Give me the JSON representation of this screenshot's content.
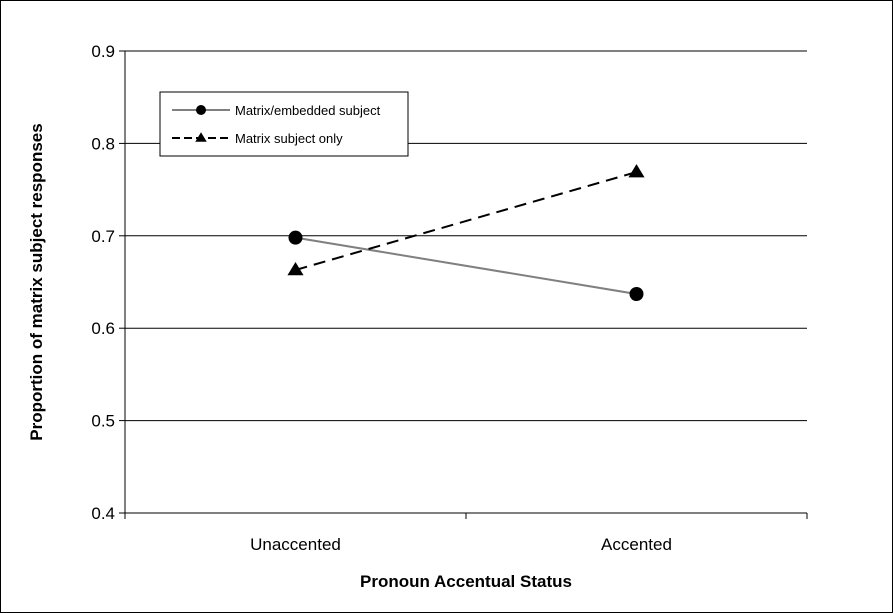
{
  "chart_data": {
    "type": "line",
    "xlabel": "Pronoun Accentual Status",
    "ylabel": "Proportion of matrix subject responses",
    "categories": [
      "Unaccented",
      "Accented"
    ],
    "ylim": [
      0.4,
      0.9
    ],
    "yticks": [
      0.4,
      0.5,
      0.6,
      0.7,
      0.8,
      0.9
    ],
    "ytick_labels": [
      "0.4",
      "0.5",
      "0.6",
      "0.7",
      "0.8",
      "0.9"
    ],
    "grid": true,
    "legend_position": "top-left",
    "series": [
      {
        "name": "Matrix/embedded subject",
        "values": [
          0.698,
          0.637
        ],
        "color": "#808080",
        "style": "solid",
        "marker": "circle"
      },
      {
        "name": "Matrix subject only",
        "values": [
          0.663,
          0.769
        ],
        "color": "#000000",
        "style": "dashed",
        "marker": "triangle"
      }
    ]
  }
}
